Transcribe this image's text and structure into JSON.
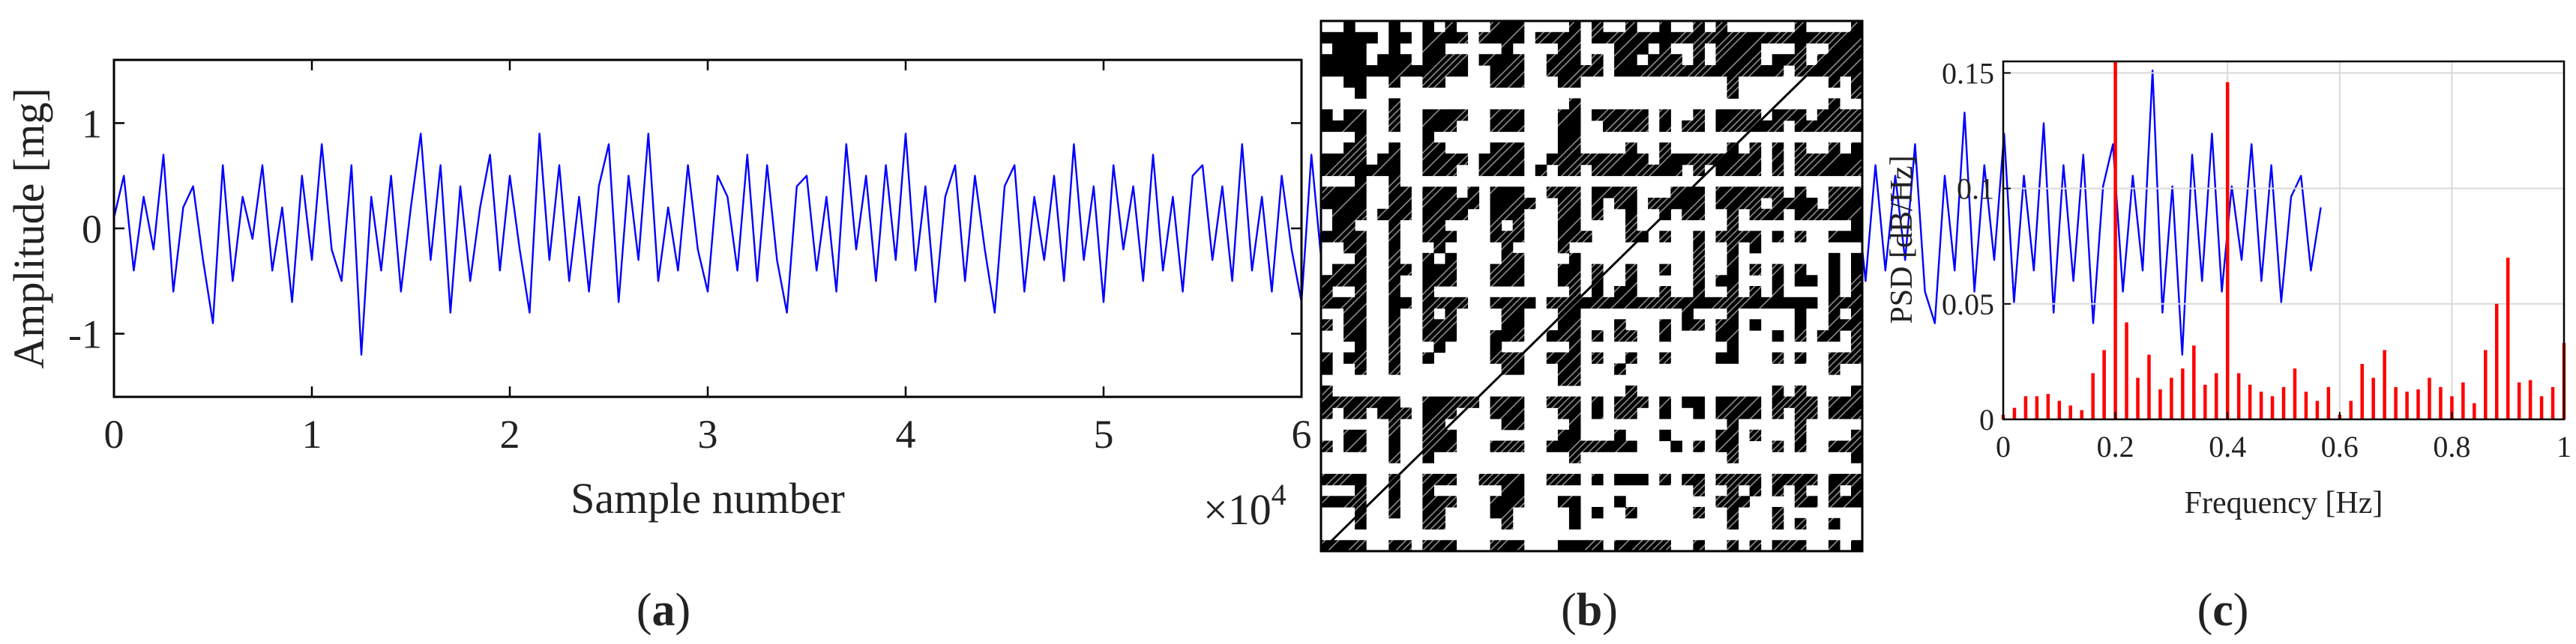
{
  "chart_data": [
    {
      "id": "a",
      "caption": {
        "open": "(",
        "letter": "a",
        "close": ")"
      },
      "type": "line",
      "title": "",
      "xlabel": "Sample number",
      "ylabel": "Amplitude [mg]",
      "xlim": [
        0,
        6
      ],
      "ylim": [
        -1.6,
        1.6
      ],
      "x_ticks": [
        "0",
        "1",
        "2",
        "3",
        "4",
        "5",
        "6"
      ],
      "y_ticks": [
        "1",
        "0",
        "-1"
      ],
      "x_multiplier": {
        "base": "×10",
        "exponent": "4"
      },
      "series_color": "#0000ff",
      "series": [
        {
          "sample_step": 0.05,
          "values": [
            0.1,
            0.5,
            -0.4,
            0.3,
            -0.2,
            0.7,
            -0.6,
            0.2,
            0.4,
            -0.3,
            -0.9,
            0.6,
            -0.5,
            0.3,
            -0.1,
            0.6,
            -0.4,
            0.2,
            -0.7,
            0.5,
            -0.3,
            0.8,
            -0.2,
            -0.5,
            0.6,
            -1.2,
            0.3,
            -0.4,
            0.5,
            -0.6,
            0.2,
            0.9,
            -0.3,
            0.6,
            -0.8,
            0.4,
            -0.5,
            0.2,
            0.7,
            -0.4,
            0.5,
            -0.2,
            -0.8,
            0.9,
            -0.3,
            0.6,
            -0.5,
            0.3,
            -0.6,
            0.4,
            0.8,
            -0.7,
            0.5,
            -0.3,
            0.9,
            -0.5,
            0.2,
            -0.4,
            0.6,
            -0.2,
            -0.6,
            0.5,
            0.3,
            -0.4,
            0.7,
            -0.5,
            0.6,
            -0.3,
            -0.8,
            0.4,
            0.5,
            -0.4,
            0.3,
            -0.6,
            0.8,
            -0.2,
            0.5,
            -0.5,
            0.6,
            -0.3,
            0.9,
            -0.4,
            0.4,
            -0.7,
            0.3,
            0.6,
            -0.5,
            0.5,
            -0.2,
            -0.8,
            0.4,
            0.6,
            -0.6,
            0.3,
            -0.3,
            0.5,
            -0.5,
            0.8,
            -0.3,
            0.4,
            -0.7,
            0.6,
            -0.2,
            0.4,
            -0.5,
            0.7,
            -0.4,
            0.3,
            -0.6,
            0.5,
            0.6,
            -0.3,
            0.4,
            -0.5,
            0.8,
            -0.4,
            0.3,
            -0.6,
            0.5,
            -0.2,
            -0.7,
            0.7,
            -0.3,
            0.4,
            -0.5,
            0.6,
            -0.4,
            0.3,
            -0.6,
            0.5,
            -0.3,
            0.6,
            -0.4,
            0.5,
            -0.3,
            0.6,
            -0.5,
            0.4,
            -0.7,
            0.3,
            0.6,
            -0.4,
            0.5,
            -0.3,
            0.7,
            -0.5,
            0.4,
            -0.6,
            0.5,
            -0.3,
            0.6,
            -0.4,
            0.5,
            -0.3,
            0.4,
            -0.6,
            0.5,
            -0.2,
            0.3,
            -0.5,
            0.6,
            -0.3,
            0.5,
            -0.6,
            0.4,
            -0.3,
            0.6,
            -0.4,
            0.5,
            -0.5,
            0.4,
            -0.3,
            0.7,
            -0.6,
            0.5,
            -0.3,
            0.4,
            -0.5,
            0.6,
            -0.4,
            0.5,
            -0.3,
            0.8,
            -0.6,
            -0.9,
            0.5,
            -0.4,
            1.1,
            -0.6,
            0.6,
            -0.3,
            0.9,
            -0.7,
            0.5,
            -0.4,
            1.0,
            -0.8,
            0.6,
            -0.5,
            0.7,
            -0.9,
            0.4,
            0.8,
            -0.6,
            0.5,
            -0.4,
            1.5,
            -0.8,
            0.4,
            -1.2,
            0.7,
            -0.5,
            0.9,
            -0.6,
            0.4,
            -0.3,
            0.8,
            -0.5,
            0.6,
            -0.7,
            0.3,
            0.5,
            -0.4,
            0.2
          ]
        }
      ]
    },
    {
      "id": "b",
      "caption": {
        "open": "(",
        "letter": "b",
        "close": ")"
      },
      "type": "heatmap",
      "title": "",
      "xlabel": "",
      "ylabel": "",
      "colors": {
        "on": "#000000",
        "off": "#ffffff"
      }
    },
    {
      "id": "c",
      "caption": {
        "open": "(",
        "letter": "c",
        "close": ")"
      },
      "type": "bar",
      "title": "",
      "xlabel": "Frequency [Hz]",
      "ylabel": "PSD [dB/Hz]",
      "xlim": [
        0,
        1
      ],
      "ylim": [
        0,
        0.155
      ],
      "x_ticks": [
        "0",
        "0.2",
        "0.4",
        "0.6",
        "0.8",
        "1"
      ],
      "y_ticks": [
        "0",
        "0.05",
        "0.1",
        "0.15"
      ],
      "grid": true,
      "bar_color": "#ff0000",
      "series": [
        {
          "x": [
            0.0,
            0.02,
            0.04,
            0.06,
            0.08,
            0.1,
            0.12,
            0.14,
            0.16,
            0.18,
            0.2,
            0.22,
            0.24,
            0.26,
            0.28,
            0.3,
            0.32,
            0.34,
            0.36,
            0.38,
            0.4,
            0.42,
            0.44,
            0.46,
            0.48,
            0.5,
            0.52,
            0.54,
            0.56,
            0.58,
            0.6,
            0.62,
            0.64,
            0.66,
            0.68,
            0.7,
            0.72,
            0.74,
            0.76,
            0.78,
            0.8,
            0.82,
            0.84,
            0.86,
            0.88,
            0.9,
            0.92,
            0.94,
            0.96,
            0.98,
            1.0
          ],
          "values": [
            0.002,
            0.005,
            0.01,
            0.01,
            0.011,
            0.008,
            0.006,
            0.004,
            0.02,
            0.03,
            0.16,
            0.042,
            0.018,
            0.028,
            0.013,
            0.018,
            0.022,
            0.032,
            0.015,
            0.02,
            0.146,
            0.02,
            0.015,
            0.012,
            0.01,
            0.014,
            0.022,
            0.012,
            0.008,
            0.014,
            0.002,
            0.008,
            0.024,
            0.018,
            0.03,
            0.014,
            0.012,
            0.013,
            0.018,
            0.014,
            0.01,
            0.016,
            0.007,
            0.03,
            0.05,
            0.07,
            0.016,
            0.017,
            0.01,
            0.014,
            0.033
          ]
        }
      ]
    }
  ]
}
